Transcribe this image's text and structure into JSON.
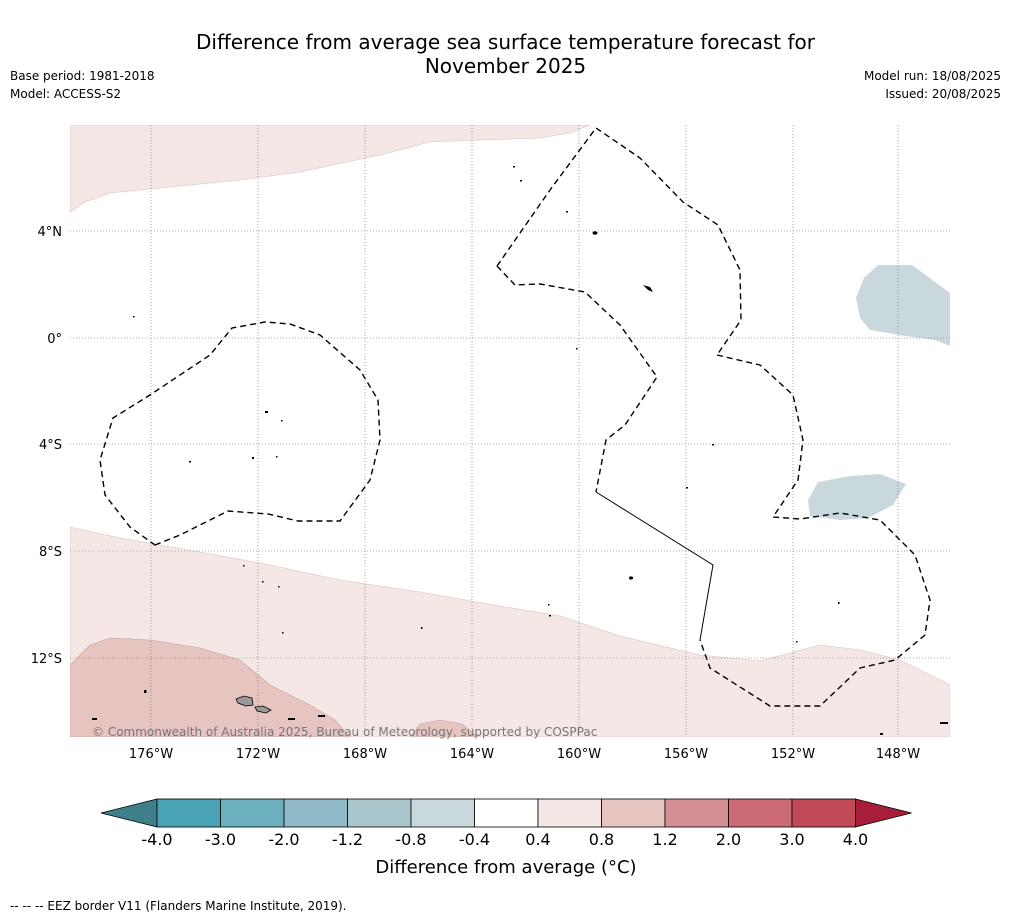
{
  "header": {
    "title_line1": "Difference from average sea surface temperature forecast for",
    "title_line2": "November 2025",
    "base_period": "Base period: 1981-2018",
    "model": "Model: ACCESS-S2",
    "model_run": "Model run: 18/08/2025",
    "issued": "Issued: 20/08/2025"
  },
  "map": {
    "lat_labels": [
      "4°N",
      "0°",
      "4°S",
      "8°S",
      "12°S"
    ],
    "lon_labels": [
      "176°W",
      "172°W",
      "168°W",
      "164°W",
      "160°W",
      "156°W",
      "152°W",
      "148°W"
    ],
    "copyright": "© Commonwealth of Australia 2025, Bureau of Meteorology, supported by COSPPac"
  },
  "colorbar": {
    "ticks": [
      "-4.0",
      "-3.0",
      "-2.0",
      "-1.2",
      "-0.8",
      "-0.4",
      "0.4",
      "0.8",
      "1.2",
      "2.0",
      "3.0",
      "4.0"
    ],
    "colors": [
      "#3f7f89",
      "#4aa3b4",
      "#6cb0bf",
      "#8fbac7",
      "#aac6cd",
      "#c9d8dd",
      "#ffffff",
      "#f4e7e6",
      "#e6c4c0",
      "#d48f94",
      "#cc6b74",
      "#c24a58",
      "#a81e3a"
    ],
    "label": "Difference from average (°C)"
  },
  "footer": {
    "note": "--  --  -- EEZ border V11 (Flanders Marine Institute, 2019)."
  }
}
